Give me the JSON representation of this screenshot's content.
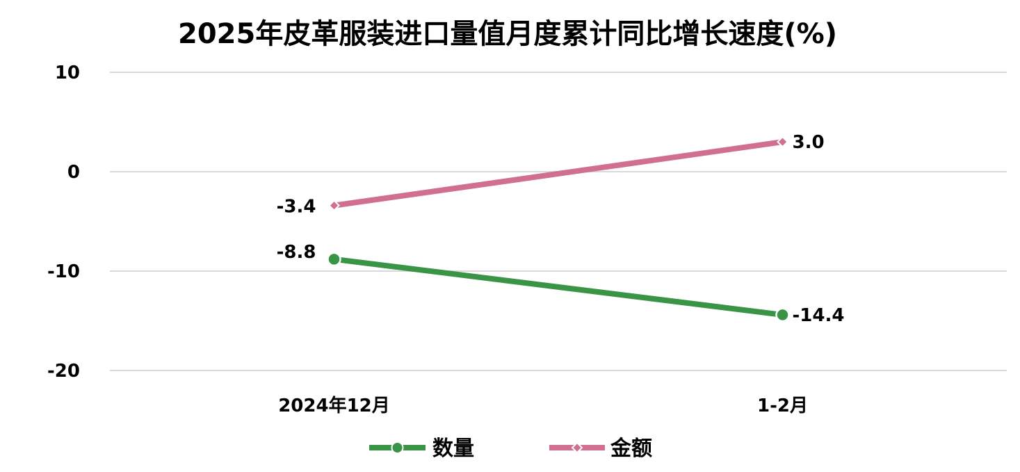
{
  "chart_data": {
    "type": "line",
    "title": "2025年皮革服装进口量值月度累计同比增长速度(%)",
    "categories": [
      "2024年12月",
      "1-2月"
    ],
    "ylim": [
      -20,
      10
    ],
    "yticks": [
      10,
      0,
      -10,
      -20
    ],
    "grid": true,
    "legend_position": "bottom",
    "series": [
      {
        "name": "数量",
        "values": [
          -8.8,
          -14.4
        ],
        "labels": [
          "-8.8",
          "-14.4"
        ],
        "color": "#3a9445",
        "marker": "circle"
      },
      {
        "name": "金额",
        "values": [
          -3.4,
          3.0
        ],
        "labels": [
          "-3.4",
          "3.0"
        ],
        "color": "#d06f92",
        "marker": "diamond"
      }
    ]
  }
}
